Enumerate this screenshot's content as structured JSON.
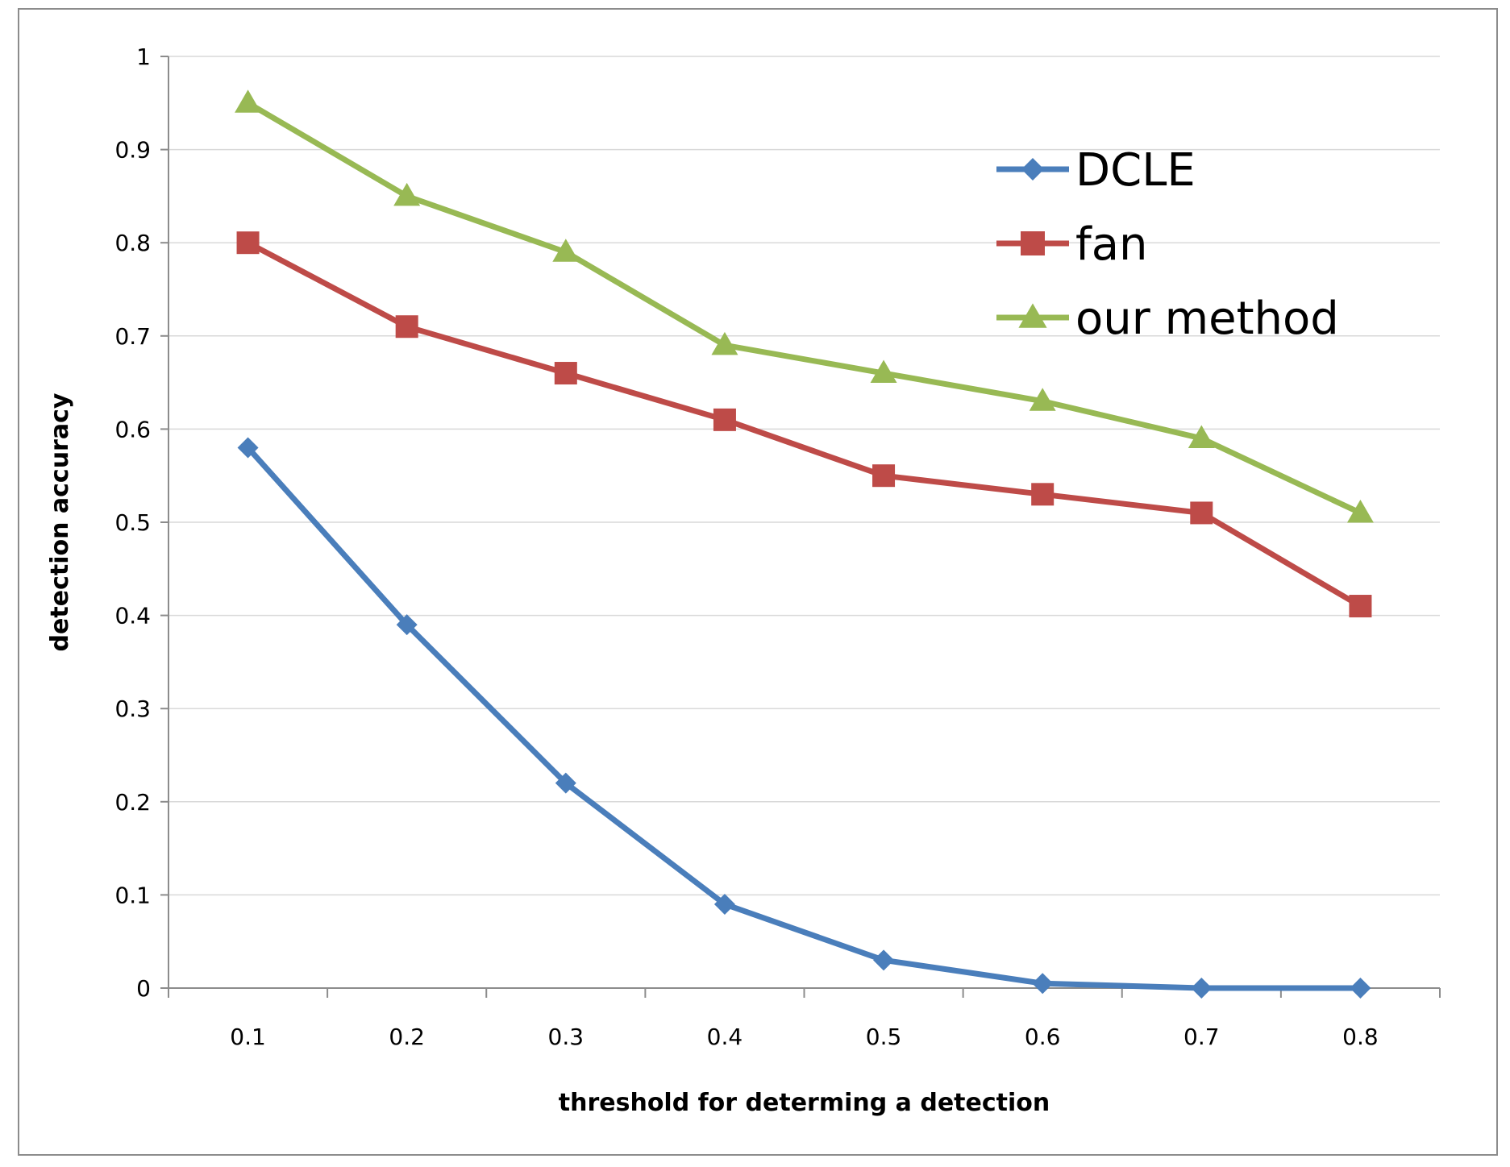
{
  "chart_data": {
    "type": "line",
    "title": "",
    "xlabel": "threshold for determing a detection",
    "ylabel": "detection accuracy",
    "categories": [
      "0.1",
      "0.2",
      "0.3",
      "0.4",
      "0.5",
      "0.6",
      "0.7",
      "0.8"
    ],
    "yticks": [
      "0",
      "0.1",
      "0.2",
      "0.3",
      "0.4",
      "0.5",
      "0.6",
      "0.7",
      "0.8",
      "0.9",
      "1"
    ],
    "ylim": [
      0,
      1
    ],
    "grid": true,
    "legend_position": "top-right",
    "series": [
      {
        "name": "DCLE",
        "color": "#4a7ebb",
        "marker": "diamond",
        "values": [
          0.58,
          0.39,
          0.22,
          0.09,
          0.03,
          0.005,
          0.0,
          0.0
        ]
      },
      {
        "name": "fan",
        "color": "#be4b48",
        "marker": "square",
        "values": [
          0.8,
          0.71,
          0.66,
          0.61,
          0.55,
          0.53,
          0.51,
          0.41
        ]
      },
      {
        "name": "our method",
        "color": "#98b954",
        "marker": "triangle",
        "values": [
          0.95,
          0.85,
          0.79,
          0.69,
          0.66,
          0.63,
          0.59,
          0.51
        ]
      }
    ]
  }
}
